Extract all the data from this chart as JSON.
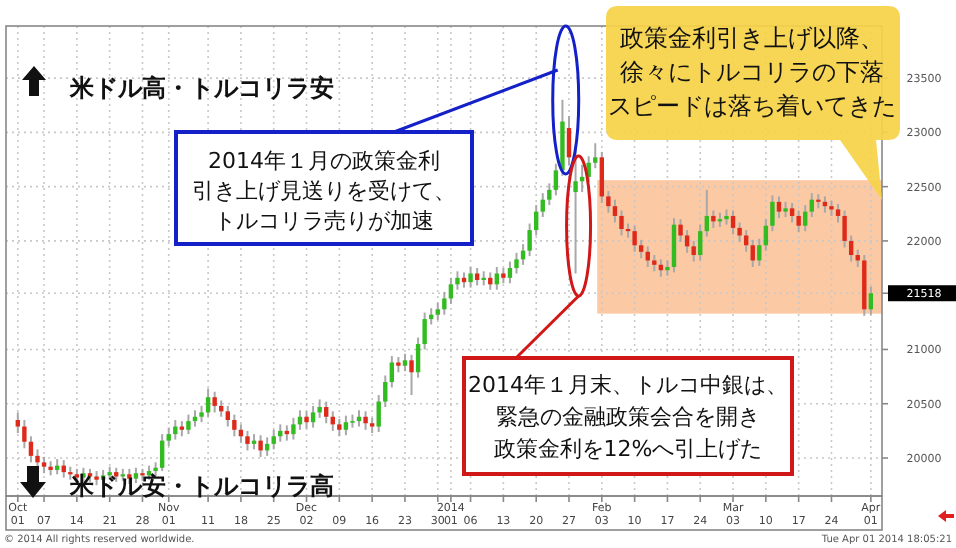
{
  "chart_data": {
    "type": "candlestick",
    "categories": [
      "Oct\n01",
      null,
      null,
      null,
      "07",
      null,
      null,
      null,
      null,
      "14",
      null,
      null,
      null,
      null,
      "21",
      null,
      null,
      null,
      null,
      "28",
      null,
      null,
      null,
      "Nov\n01",
      null,
      null,
      null,
      null,
      null,
      "11",
      null,
      null,
      null,
      null,
      "18",
      null,
      null,
      null,
      null,
      "25",
      null,
      null,
      null,
      null,
      "Dec\n02",
      null,
      null,
      null,
      null,
      "09",
      null,
      null,
      null,
      null,
      "16",
      null,
      null,
      null,
      null,
      "23",
      null,
      null,
      null,
      null,
      "30",
      null,
      "2014\n01",
      null,
      null,
      "06",
      null,
      null,
      null,
      null,
      "13",
      null,
      null,
      null,
      null,
      "20",
      null,
      null,
      null,
      null,
      "27",
      null,
      null,
      null,
      null,
      "Feb\n03",
      null,
      null,
      null,
      null,
      "10",
      null,
      null,
      null,
      null,
      "17",
      null,
      null,
      null,
      null,
      "24",
      null,
      null,
      null,
      null,
      "Mar\n03",
      null,
      null,
      null,
      null,
      "10",
      null,
      null,
      null,
      null,
      "17",
      null,
      null,
      null,
      null,
      "24",
      null,
      null,
      null,
      null,
      null,
      "Apr\n01"
    ],
    "ohlc": [
      [
        20350,
        20420,
        20230,
        20290
      ],
      [
        20290,
        20350,
        20090,
        20150
      ],
      [
        20150,
        20200,
        19960,
        20020
      ],
      [
        20020,
        20080,
        19900,
        19960
      ],
      [
        19960,
        20010,
        19860,
        19920
      ],
      [
        19920,
        19970,
        19840,
        19890
      ],
      [
        19890,
        19990,
        19850,
        19930
      ],
      [
        19930,
        19980,
        19820,
        19870
      ],
      [
        19870,
        19920,
        19800,
        19850
      ],
      [
        19850,
        19900,
        19770,
        19820
      ],
      [
        19820,
        19910,
        19780,
        19860
      ],
      [
        19860,
        19900,
        19780,
        19830
      ],
      [
        19830,
        19880,
        19750,
        19800
      ],
      [
        19800,
        19890,
        19760,
        19840
      ],
      [
        19840,
        19920,
        19800,
        19870
      ],
      [
        19870,
        19910,
        19780,
        19830
      ],
      [
        19830,
        19900,
        19790,
        19850
      ],
      [
        19850,
        19900,
        19760,
        19810
      ],
      [
        19810,
        19910,
        19770,
        19860
      ],
      [
        19860,
        19900,
        19790,
        19840
      ],
      [
        19840,
        19930,
        19800,
        19880
      ],
      [
        19880,
        19960,
        19830,
        19910
      ],
      [
        19910,
        20220,
        19880,
        20160
      ],
      [
        20160,
        20280,
        20110,
        20220
      ],
      [
        20220,
        20350,
        20170,
        20290
      ],
      [
        20290,
        20340,
        20200,
        20260
      ],
      [
        20260,
        20400,
        20220,
        20340
      ],
      [
        20340,
        20440,
        20290,
        20380
      ],
      [
        20380,
        20480,
        20330,
        20420
      ],
      [
        20420,
        20640,
        20380,
        20560
      ],
      [
        20560,
        20610,
        20420,
        20480
      ],
      [
        20480,
        20530,
        20380,
        20430
      ],
      [
        20430,
        20480,
        20290,
        20350
      ],
      [
        20350,
        20400,
        20200,
        20260
      ],
      [
        20260,
        20310,
        20140,
        20200
      ],
      [
        20200,
        20250,
        20070,
        20130
      ],
      [
        20130,
        20220,
        20080,
        20160
      ],
      [
        20160,
        20210,
        20010,
        20070
      ],
      [
        20070,
        20190,
        20020,
        20130
      ],
      [
        20130,
        20260,
        20080,
        20200
      ],
      [
        20200,
        20310,
        20150,
        20250
      ],
      [
        20250,
        20300,
        20160,
        20220
      ],
      [
        20220,
        20370,
        20170,
        20310
      ],
      [
        20310,
        20440,
        20260,
        20380
      ],
      [
        20380,
        20430,
        20270,
        20330
      ],
      [
        20330,
        20480,
        20280,
        20420
      ],
      [
        20420,
        20540,
        20370,
        20470
      ],
      [
        20470,
        20520,
        20320,
        20380
      ],
      [
        20380,
        20430,
        20250,
        20310
      ],
      [
        20310,
        20360,
        20200,
        20260
      ],
      [
        20260,
        20390,
        20210,
        20330
      ],
      [
        20330,
        20400,
        20280,
        20340
      ],
      [
        20340,
        20440,
        20290,
        20380
      ],
      [
        20380,
        20430,
        20260,
        20320
      ],
      [
        20320,
        20370,
        20230,
        20290
      ],
      [
        20290,
        20580,
        20240,
        20520
      ],
      [
        20520,
        20760,
        20470,
        20700
      ],
      [
        20700,
        20940,
        20650,
        20880
      ],
      [
        20880,
        20930,
        20790,
        20850
      ],
      [
        20850,
        20960,
        20800,
        20900
      ],
      [
        20900,
        20950,
        20580,
        20790
      ],
      [
        20790,
        21110,
        20740,
        21050
      ],
      [
        21050,
        21340,
        21000,
        21280
      ],
      [
        21280,
        21380,
        21230,
        21320
      ],
      [
        21320,
        21430,
        21270,
        21370
      ],
      [
        21370,
        21530,
        21320,
        21470
      ],
      [
        21470,
        21660,
        21420,
        21600
      ],
      [
        21600,
        21720,
        21550,
        21660
      ],
      [
        21660,
        21710,
        21570,
        21620
      ],
      [
        21620,
        21760,
        21570,
        21700
      ],
      [
        21700,
        21750,
        21590,
        21640
      ],
      [
        21640,
        21720,
        21590,
        21660
      ],
      [
        21660,
        21710,
        21550,
        21600
      ],
      [
        21600,
        21760,
        21550,
        21700
      ],
      [
        21700,
        21750,
        21610,
        21660
      ],
      [
        21660,
        21810,
        21610,
        21750
      ],
      [
        21750,
        21890,
        21700,
        21830
      ],
      [
        21830,
        21970,
        21780,
        21910
      ],
      [
        21910,
        22160,
        21860,
        22100
      ],
      [
        22100,
        22330,
        22050,
        22270
      ],
      [
        22270,
        22440,
        22220,
        22380
      ],
      [
        22380,
        22530,
        22330,
        22470
      ],
      [
        22470,
        22710,
        22420,
        22650
      ],
      [
        22650,
        23300,
        22600,
        23100
      ],
      [
        23040,
        23150,
        22700,
        22770
      ],
      [
        22450,
        22860,
        21700,
        22550
      ],
      [
        22550,
        22700,
        22450,
        22590
      ],
      [
        22590,
        22780,
        22540,
        22720
      ],
      [
        22720,
        22900,
        22670,
        22770
      ],
      [
        22770,
        22820,
        22350,
        22410
      ],
      [
        22410,
        22460,
        22260,
        22320
      ],
      [
        22320,
        22380,
        22170,
        22230
      ],
      [
        22230,
        22280,
        22050,
        22110
      ],
      [
        22110,
        22160,
        22030,
        22090
      ],
      [
        22090,
        22140,
        21900,
        21960
      ],
      [
        21960,
        22010,
        21840,
        21900
      ],
      [
        21900,
        21950,
        21760,
        21820
      ],
      [
        21820,
        21870,
        21720,
        21780
      ],
      [
        21780,
        21830,
        21670,
        21730
      ],
      [
        21730,
        21820,
        21680,
        21760
      ],
      [
        21760,
        22210,
        21710,
        22150
      ],
      [
        22150,
        22200,
        21990,
        22050
      ],
      [
        22050,
        22100,
        21890,
        21950
      ],
      [
        21950,
        22000,
        21810,
        21870
      ],
      [
        21870,
        22150,
        21820,
        22090
      ],
      [
        22090,
        22470,
        22040,
        22230
      ],
      [
        22230,
        22280,
        22120,
        22180
      ],
      [
        22180,
        22260,
        22130,
        22200
      ],
      [
        22200,
        22290,
        22150,
        22230
      ],
      [
        22230,
        22280,
        22060,
        22120
      ],
      [
        22120,
        22170,
        21990,
        22050
      ],
      [
        22050,
        22100,
        21900,
        21960
      ],
      [
        21960,
        22010,
        21760,
        21820
      ],
      [
        21820,
        22020,
        21770,
        21960
      ],
      [
        21960,
        22200,
        21910,
        22140
      ],
      [
        22140,
        22420,
        22090,
        22360
      ],
      [
        22360,
        22410,
        22210,
        22270
      ],
      [
        22270,
        22360,
        22220,
        22300
      ],
      [
        22300,
        22350,
        22170,
        22230
      ],
      [
        22230,
        22280,
        22080,
        22140
      ],
      [
        22140,
        22330,
        22090,
        22270
      ],
      [
        22270,
        22440,
        22220,
        22380
      ],
      [
        22380,
        22430,
        22300,
        22360
      ],
      [
        22360,
        22410,
        22260,
        22320
      ],
      [
        22320,
        22370,
        22230,
        22290
      ],
      [
        22290,
        22340,
        22170,
        22230
      ],
      [
        22230,
        22280,
        21940,
        22000
      ],
      [
        22000,
        22050,
        21810,
        21870
      ],
      [
        21870,
        21920,
        21760,
        21820
      ],
      [
        21820,
        21870,
        21310,
        21370
      ],
      [
        21370,
        21580,
        21320,
        21518
      ]
    ],
    "ylim": [
      19650,
      23980
    ],
    "yticks": [
      20000,
      20500,
      21000,
      21518,
      22000,
      22500,
      23000,
      23500
    ],
    "grid": true,
    "bands": [
      {
        "axis": "y",
        "from": 21330,
        "to": 22560,
        "color": "#fcc9a5"
      }
    ],
    "annotations": [
      "米ドル高・トルコリラ安",
      "米ドル安・トルコリラ高",
      "2014年１月の政策金利",
      "引き上げ見送りを受けて、",
      "トルコリラ売りが加速",
      "2014年１月末、トルコ中銀は、",
      "緊急の金融政策会合を開き",
      "政策金利を12%へ引上げた",
      "政策金利引き上げ以降、",
      "徐々にトルコリラの下落",
      "スピードは落ち着いてきた",
      "© 2014 All rights reserved worldwide.",
      "Tue Apr 01 2014 18:05:21"
    ]
  }
}
